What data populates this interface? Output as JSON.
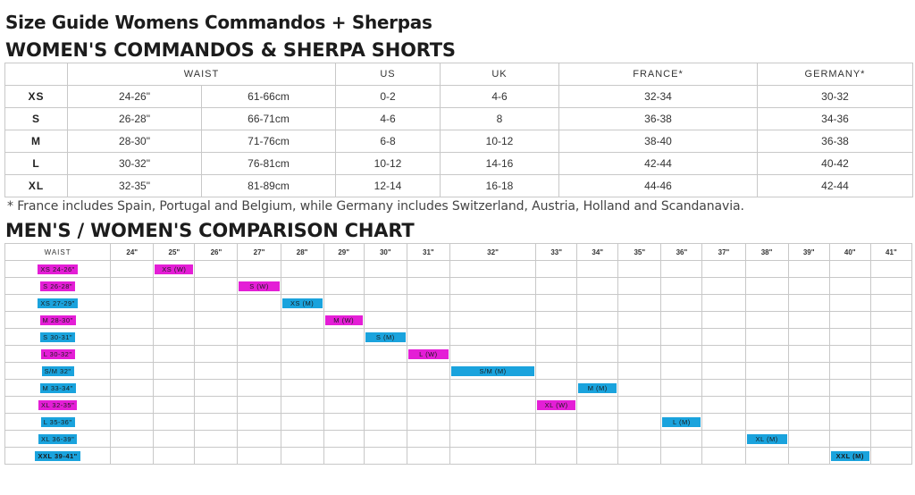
{
  "colors": {
    "pink": "#e41ed6",
    "blue": "#1aa3dd",
    "border": "#c8c8c8"
  },
  "titles": {
    "main": "Size Guide Womens Commandos + Sherpas",
    "shorts": "WOMEN'S COMMANDOS & SHERPA SHORTS",
    "comparison": "MEN'S / WOMEN'S COMPARISON CHART"
  },
  "size_table": {
    "headers": [
      "",
      "WAIST",
      "US",
      "UK",
      "FRANCE*",
      "GERMANY*"
    ],
    "rows": [
      {
        "size": "XS",
        "waist_in": "24-26\"",
        "waist_cm": "61-66cm",
        "us": "0-2",
        "uk": "4-6",
        "france": "32-34",
        "germany": "30-32"
      },
      {
        "size": "S",
        "waist_in": "26-28\"",
        "waist_cm": "66-71cm",
        "us": "4-6",
        "uk": "8",
        "france": "36-38",
        "germany": "34-36"
      },
      {
        "size": "M",
        "waist_in": "28-30\"",
        "waist_cm": "71-76cm",
        "us": "6-8",
        "uk": "10-12",
        "france": "38-40",
        "germany": "36-38"
      },
      {
        "size": "L",
        "waist_in": "30-32\"",
        "waist_cm": "76-81cm",
        "us": "10-12",
        "uk": "14-16",
        "france": "42-44",
        "germany": "40-42"
      },
      {
        "size": "XL",
        "waist_in": "32-35\"",
        "waist_cm": "81-89cm",
        "us": "12-14",
        "uk": "16-18",
        "france": "44-46",
        "germany": "42-44"
      }
    ]
  },
  "footnote": "* France includes Spain, Portugal and Belgium, while Germany includes Switzerland, Austria, Holland and Scandanavia.",
  "comparison": {
    "waist_header": "WAIST",
    "columns": [
      "24\"",
      "25\"",
      "26\"",
      "27\"",
      "28\"",
      "29\"",
      "30\"",
      "31\"",
      "32\"",
      "33\"",
      "34\"",
      "35\"",
      "36\"",
      "37\"",
      "38\"",
      "39\"",
      "40\"",
      "41\""
    ],
    "rows": [
      {
        "label": "XS 24-26\"",
        "color": "pink",
        "tag": "XS (W)",
        "column": 1
      },
      {
        "label": "S 26-28\"",
        "color": "pink",
        "tag": "S (W)",
        "column": 3
      },
      {
        "label": "XS 27-29\"",
        "color": "blue",
        "tag": "XS (M)",
        "column": 4
      },
      {
        "label": "M 28-30\"",
        "color": "pink",
        "tag": "M (W)",
        "column": 5
      },
      {
        "label": "S 30-31\"",
        "color": "blue",
        "tag": "S (M)",
        "column": 6
      },
      {
        "label": "L 30-32\"",
        "color": "pink",
        "tag": "L (W)",
        "column": 7
      },
      {
        "label": "S/M 32\"",
        "color": "blue",
        "tag": "S/M (M)",
        "column": 8
      },
      {
        "label": "M 33-34\"",
        "color": "blue",
        "tag": "M (M)",
        "column": 10
      },
      {
        "label": "XL 32-35\"",
        "color": "pink",
        "tag": "XL (W)",
        "column": 9
      },
      {
        "label": "L 35-36\"",
        "color": "blue",
        "tag": "L (M)",
        "column": 12
      },
      {
        "label": "XL 36-39\"",
        "color": "blue",
        "tag": "XL (M)",
        "column": 14
      },
      {
        "label": "XXL 39-41\"",
        "color": "blue",
        "tag": "XXL (M)",
        "column": 16
      }
    ]
  }
}
